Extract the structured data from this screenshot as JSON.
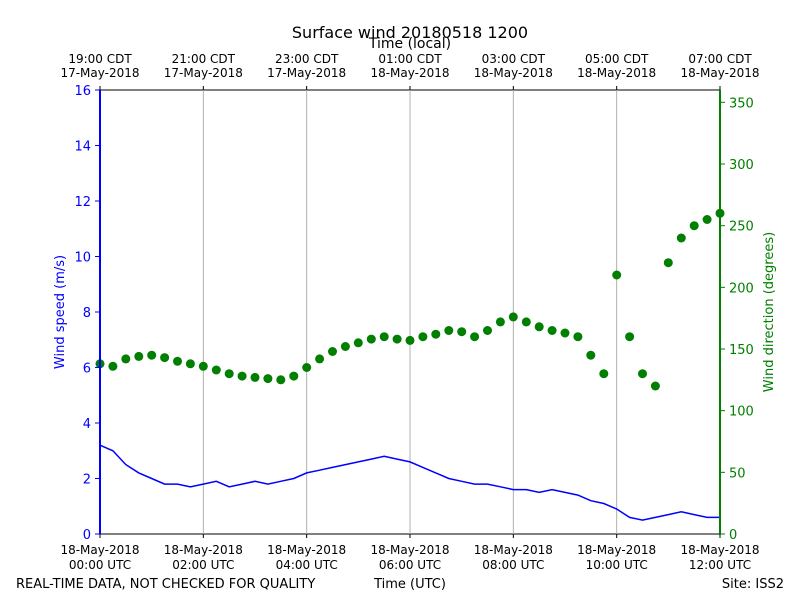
{
  "chart_data": {
    "type": "scatter",
    "title": "Surface wind 20180518 1200",
    "top_axis_label": "Time (local)",
    "xlabel": "Time (UTC)",
    "ylabel_left": "Wind speed (m/s)",
    "ylabel_right": "Wind direction (degrees)",
    "xlim_hours_utc": [
      0,
      12
    ],
    "ylim_left": [
      0,
      16
    ],
    "ylim_right": [
      0,
      360
    ],
    "left_ticks": [
      "0",
      "2",
      "4",
      "6",
      "8",
      "10",
      "12",
      "14",
      "16"
    ],
    "right_ticks": [
      "0",
      "50",
      "100",
      "150",
      "200",
      "250",
      "300",
      "350"
    ],
    "bottom_ticks": [
      {
        "hour": 0,
        "line1": "18-May-2018",
        "line2": "00:00 UTC"
      },
      {
        "hour": 2,
        "line1": "18-May-2018",
        "line2": "02:00 UTC"
      },
      {
        "hour": 4,
        "line1": "18-May-2018",
        "line2": "04:00 UTC"
      },
      {
        "hour": 6,
        "line1": "18-May-2018",
        "line2": "06:00 UTC"
      },
      {
        "hour": 8,
        "line1": "18-May-2018",
        "line2": "08:00 UTC"
      },
      {
        "hour": 10,
        "line1": "18-May-2018",
        "line2": "10:00 UTC"
      },
      {
        "hour": 12,
        "line1": "18-May-2018",
        "line2": "12:00 UTC"
      }
    ],
    "top_ticks": [
      {
        "hour": 0,
        "line1": "19:00 CDT",
        "line2": "17-May-2018"
      },
      {
        "hour": 2,
        "line1": "21:00 CDT",
        "line2": "17-May-2018"
      },
      {
        "hour": 4,
        "line1": "23:00 CDT",
        "line2": "17-May-2018"
      },
      {
        "hour": 6,
        "line1": "01:00 CDT",
        "line2": "18-May-2018"
      },
      {
        "hour": 8,
        "line1": "03:00 CDT",
        "line2": "18-May-2018"
      },
      {
        "hour": 10,
        "line1": "05:00 CDT",
        "line2": "18-May-2018"
      },
      {
        "hour": 12,
        "line1": "07:00 CDT",
        "line2": "18-May-2018"
      }
    ],
    "series": [
      {
        "name": "Wind speed",
        "kind": "line",
        "axis": "left",
        "color": "#0000ff",
        "x_hours": [
          0,
          0.25,
          0.5,
          0.75,
          1,
          1.25,
          1.5,
          1.75,
          2,
          2.25,
          2.5,
          2.75,
          3,
          3.25,
          3.5,
          3.75,
          4,
          4.25,
          4.5,
          4.75,
          5,
          5.25,
          5.5,
          5.75,
          6,
          6.25,
          6.5,
          6.75,
          7,
          7.25,
          7.5,
          7.75,
          8,
          8.25,
          8.5,
          8.75,
          9,
          9.25,
          9.5,
          9.75,
          10,
          10.25,
          10.5,
          10.75,
          11,
          11.25,
          11.5,
          11.75,
          12
        ],
        "values": [
          3.2,
          3.0,
          2.5,
          2.2,
          2.0,
          1.8,
          1.8,
          1.7,
          1.8,
          1.9,
          1.7,
          1.8,
          1.9,
          1.8,
          1.9,
          2.0,
          2.2,
          2.3,
          2.4,
          2.5,
          2.6,
          2.7,
          2.8,
          2.7,
          2.6,
          2.4,
          2.2,
          2.0,
          1.9,
          1.8,
          1.8,
          1.7,
          1.6,
          1.6,
          1.5,
          1.6,
          1.5,
          1.4,
          1.2,
          1.1,
          0.9,
          0.6,
          0.5,
          0.6,
          0.7,
          0.8,
          0.7,
          0.6,
          0.6
        ]
      },
      {
        "name": "Wind direction",
        "kind": "scatter",
        "axis": "right",
        "color": "#007f00",
        "x_hours": [
          0,
          0.25,
          0.5,
          0.75,
          1,
          1.25,
          1.5,
          1.75,
          2,
          2.25,
          2.5,
          2.75,
          3,
          3.25,
          3.5,
          3.75,
          4,
          4.25,
          4.5,
          4.75,
          5,
          5.25,
          5.5,
          5.75,
          6,
          6.25,
          6.5,
          6.75,
          7,
          7.25,
          7.5,
          7.75,
          8,
          8.25,
          8.5,
          8.75,
          9,
          9.25,
          9.5,
          9.75,
          10,
          10.25,
          10.5,
          10.75,
          11,
          11.25,
          11.5,
          11.75,
          12
        ],
        "values": [
          138,
          136,
          142,
          144,
          145,
          143,
          140,
          138,
          136,
          133,
          130,
          128,
          127,
          126,
          125,
          128,
          135,
          142,
          148,
          152,
          155,
          158,
          160,
          158,
          157,
          160,
          162,
          165,
          164,
          160,
          165,
          172,
          176,
          172,
          168,
          165,
          163,
          160,
          145,
          130,
          210,
          160,
          130,
          120,
          220,
          240,
          250,
          255,
          260
        ]
      }
    ],
    "footer_left": "REAL-TIME DATA, NOT CHECKED FOR QUALITY",
    "footer_center": "Time (UTC)",
    "footer_right": "Site: ISS2"
  }
}
